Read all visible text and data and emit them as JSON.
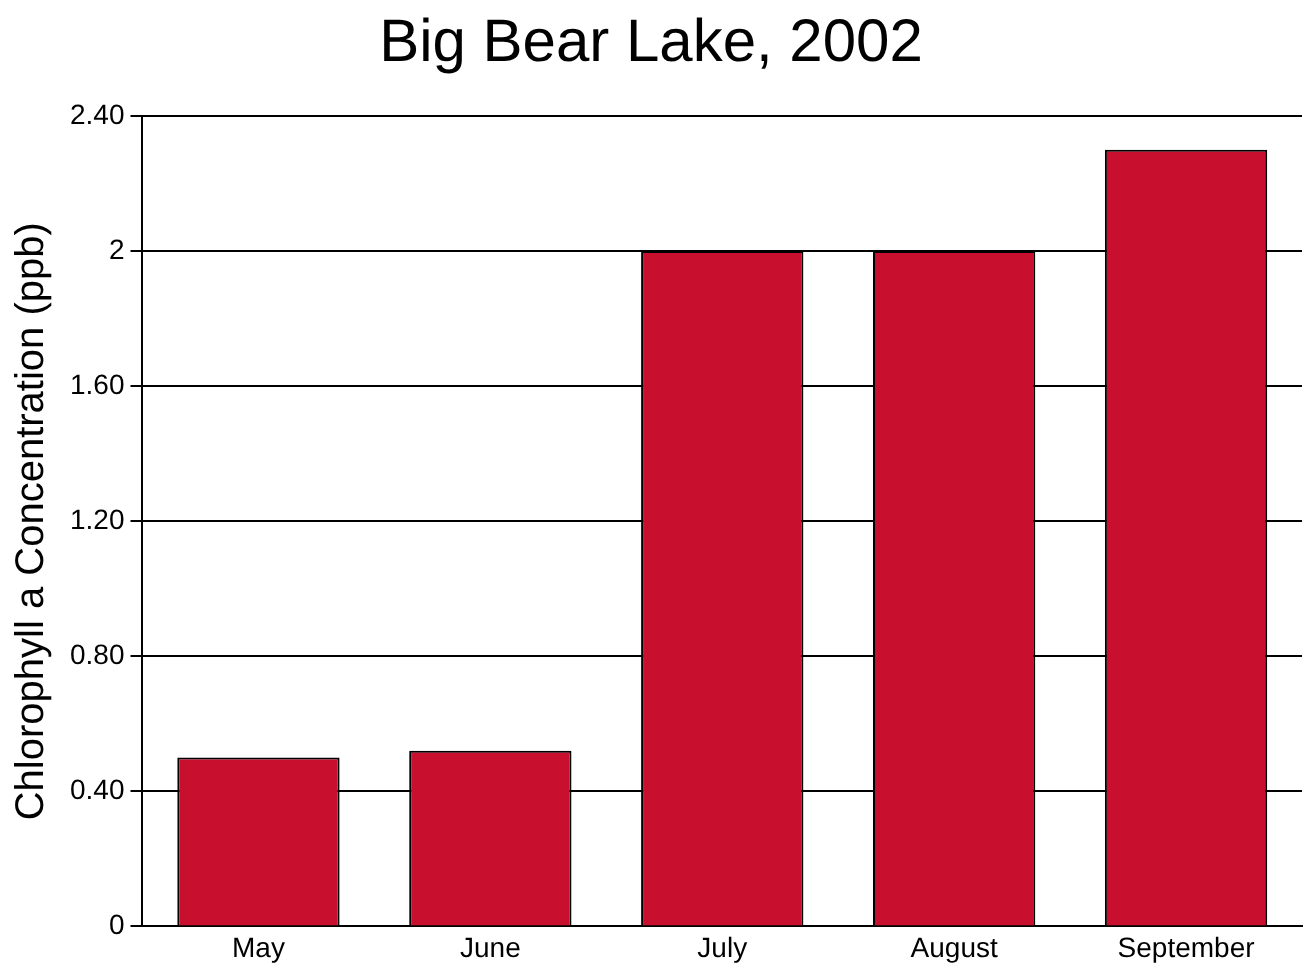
{
  "chart_data": {
    "type": "bar",
    "title": "Big Bear Lake, 2002",
    "ylabel": "Chlorophyll a Concentration (ppb)",
    "categories": [
      "May",
      "June",
      "July",
      "August",
      "September"
    ],
    "values": [
      0.5,
      0.52,
      2.0,
      2.0,
      2.3
    ],
    "color": "#c8102e",
    "ylim": [
      0,
      2.4
    ],
    "yticks": [
      0,
      {
        "value": 0.4,
        "label": "0.40"
      },
      {
        "value": 0.8,
        "label": "0.80"
      },
      {
        "value": 1.2,
        "label": "1.20"
      },
      {
        "value": 1.6,
        "label": "1.60"
      },
      2,
      {
        "value": 2.4,
        "label": "2.40"
      }
    ],
    "grid": "y"
  }
}
